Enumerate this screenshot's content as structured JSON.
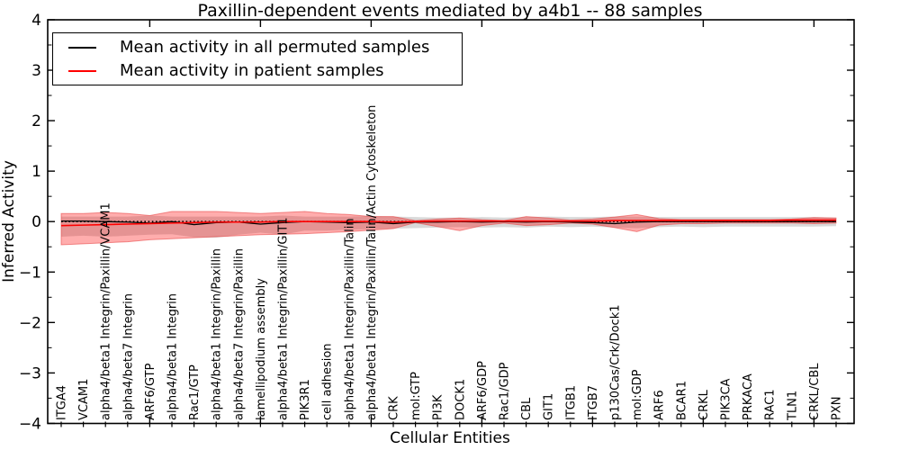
{
  "chart_data": {
    "type": "line",
    "title": "Paxillin-dependent events mediated by a4b1 -- 88 samples",
    "xlabel": "Cellular Entities",
    "ylabel": "Inferred Activity",
    "ylim": [
      -4,
      4
    ],
    "ytick_labels": [
      "4",
      "3",
      "2",
      "1",
      "0",
      "−1",
      "−2",
      "−3",
      "−4"
    ],
    "ytick_values": [
      4,
      3,
      2,
      1,
      0,
      -1,
      -2,
      -3,
      -4
    ],
    "y_minor_step": 0.5,
    "xtick_values": [
      5,
      10,
      15,
      20,
      25,
      30,
      35
    ],
    "grid": false,
    "legend_position": "upper left",
    "legend": [
      {
        "label": "Mean activity in all permuted samples",
        "color": "#000000",
        "style": "solid"
      },
      {
        "label": "Mean activity in patient samples",
        "color": "#ff0000",
        "style": "solid"
      }
    ],
    "zero_line": {
      "value": 0,
      "color": "#000000",
      "style": "dotted"
    },
    "categories": [
      "ITGA4",
      "VCAM1",
      "alpha4/beta1 Integrin/Paxillin/VCAM1",
      "alpha4/beta7 Integrin",
      "ARF6/GTP",
      "alpha4/beta1 Integrin",
      "Rac1/GTP",
      "alpha4/beta1 Integrin/Paxillin",
      "alpha4/beta7 Integrin/Paxillin",
      "lamellipodium assembly",
      "alpha4/beta1 Integrin/Paxillin/GIT1",
      "PIK3R1",
      "cell adhesion",
      "alpha4/beta1 Integrin/Paxillin/Talin",
      "alpha4/beta1 Integrin/Paxillin/Talin/Actin Cytoskeleton",
      "CRK",
      "mol:GTP",
      "PI3K",
      "DOCK1",
      "ARF6/GDP",
      "Rac1/GDP",
      "CBL",
      "GIT1",
      "ITGB1",
      "ITGB7",
      "p130Cas/Crk/Dock1",
      "mol:GDP",
      "ARF6",
      "BCAR1",
      "CRKL",
      "PIK3CA",
      "PRKACA",
      "RAC1",
      "TLN1",
      "CRKL/CBL",
      "PXN"
    ],
    "series": [
      {
        "name": "Mean activity in all permuted samples",
        "color": "#000000",
        "style": "solid",
        "values": [
          0.01,
          0.01,
          0.0,
          -0.01,
          -0.03,
          0.0,
          -0.06,
          -0.02,
          -0.01,
          -0.05,
          -0.02,
          0.0,
          -0.01,
          -0.02,
          -0.01,
          -0.04,
          -0.01,
          -0.01,
          0.0,
          -0.01,
          0.0,
          -0.01,
          0.0,
          -0.01,
          -0.02,
          -0.04,
          -0.01,
          0.0,
          0.0,
          0.0,
          0.0,
          0.0,
          0.0,
          0.0,
          0.0,
          0.0
        ]
      },
      {
        "name": "Mean activity in patient samples",
        "color": "#ff0000",
        "style": "solid",
        "values": [
          -0.08,
          -0.07,
          -0.06,
          -0.05,
          -0.04,
          -0.03,
          -0.02,
          -0.01,
          -0.01,
          -0.01,
          0.0,
          0.0,
          0.0,
          0.0,
          0.0,
          -0.01,
          0.0,
          0.01,
          0.01,
          0.01,
          0.01,
          0.01,
          0.01,
          0.01,
          0.01,
          0.02,
          0.02,
          0.02,
          0.02,
          0.02,
          0.02,
          0.02,
          0.02,
          0.03,
          0.03,
          0.03
        ]
      }
    ],
    "bands": [
      {
        "name": "permuted samples spread",
        "color": "rgba(0,0,0,0.15)",
        "hi": [
          0.1,
          0.1,
          0.1,
          0.1,
          0.12,
          0.1,
          0.1,
          0.1,
          0.1,
          0.1,
          0.12,
          0.1,
          0.1,
          0.1,
          0.11,
          0.1,
          0.09,
          0.08,
          0.08,
          0.09,
          0.08,
          0.09,
          0.1,
          0.09,
          0.09,
          0.1,
          0.1,
          0.09,
          0.09,
          0.09,
          0.09,
          0.09,
          0.09,
          0.09,
          0.09,
          0.08
        ],
        "lo": [
          -0.3,
          -0.28,
          -0.3,
          -0.28,
          -0.26,
          -0.25,
          -0.31,
          -0.32,
          -0.26,
          -0.22,
          -0.26,
          -0.18,
          -0.18,
          -0.16,
          -0.15,
          -0.14,
          -0.13,
          -0.12,
          -0.11,
          -0.12,
          -0.11,
          -0.12,
          -0.1,
          -0.11,
          -0.1,
          -0.12,
          -0.13,
          -0.11,
          -0.1,
          -0.11,
          -0.1,
          -0.1,
          -0.1,
          -0.1,
          -0.1,
          -0.09
        ]
      },
      {
        "name": "patient samples spread",
        "color": "rgba(255,0,0,0.32)",
        "hi": [
          0.16,
          0.16,
          0.18,
          0.16,
          0.12,
          0.2,
          0.2,
          0.2,
          0.18,
          0.16,
          0.18,
          0.2,
          0.16,
          0.14,
          0.1,
          0.1,
          0.02,
          0.05,
          0.07,
          0.04,
          0.02,
          0.1,
          0.07,
          0.03,
          0.05,
          0.09,
          0.14,
          0.06,
          0.04,
          0.04,
          0.04,
          0.04,
          0.04,
          0.05,
          0.08,
          0.07
        ],
        "lo": [
          -0.46,
          -0.44,
          -0.42,
          -0.4,
          -0.36,
          -0.34,
          -0.32,
          -0.3,
          -0.28,
          -0.26,
          -0.25,
          -0.24,
          -0.22,
          -0.2,
          -0.17,
          -0.14,
          -0.02,
          -0.1,
          -0.18,
          -0.08,
          -0.03,
          -0.08,
          -0.06,
          -0.03,
          -0.05,
          -0.12,
          -0.2,
          -0.07,
          -0.04,
          -0.04,
          -0.03,
          -0.03,
          -0.03,
          -0.03,
          -0.04,
          -0.03
        ]
      }
    ]
  }
}
